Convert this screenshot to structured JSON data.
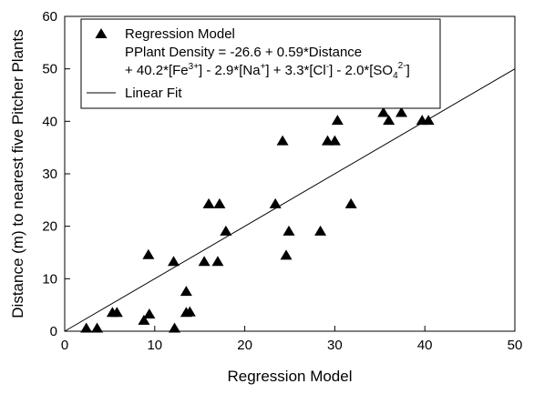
{
  "chart_data": {
    "type": "scatter",
    "xlabel": "Regression Model",
    "ylabel": "Distance (m) to nearest five Pitcher Plants",
    "xlim": [
      0,
      50
    ],
    "ylim": [
      0,
      60
    ],
    "x_ticks": [
      "0",
      "10",
      "20",
      "30",
      "40",
      "50"
    ],
    "y_ticks": [
      "0",
      "10",
      "20",
      "30",
      "40",
      "50",
      "60"
    ],
    "grid": false,
    "legend_position": "top-left",
    "series": [
      {
        "name": "Regression Model",
        "marker": "triangle",
        "points": [
          {
            "x": 2.4,
            "y": 0.5
          },
          {
            "x": 3.6,
            "y": 0.5
          },
          {
            "x": 5.3,
            "y": 3.5
          },
          {
            "x": 5.8,
            "y": 3.5
          },
          {
            "x": 8.8,
            "y": 2.0
          },
          {
            "x": 9.3,
            "y": 14.5
          },
          {
            "x": 9.4,
            "y": 3.2
          },
          {
            "x": 12.1,
            "y": 13.2
          },
          {
            "x": 12.2,
            "y": 0.5
          },
          {
            "x": 13.5,
            "y": 7.5
          },
          {
            "x": 13.5,
            "y": 3.5
          },
          {
            "x": 13.9,
            "y": 3.6
          },
          {
            "x": 15.5,
            "y": 13.2
          },
          {
            "x": 16.0,
            "y": 24.2
          },
          {
            "x": 17.0,
            "y": 13.2
          },
          {
            "x": 17.2,
            "y": 24.2
          },
          {
            "x": 17.9,
            "y": 19.0
          },
          {
            "x": 23.4,
            "y": 24.2
          },
          {
            "x": 24.2,
            "y": 36.2
          },
          {
            "x": 24.6,
            "y": 14.4
          },
          {
            "x": 24.9,
            "y": 19.0
          },
          {
            "x": 28.4,
            "y": 19.0
          },
          {
            "x": 29.2,
            "y": 36.2
          },
          {
            "x": 30.0,
            "y": 36.2
          },
          {
            "x": 30.3,
            "y": 40.1
          },
          {
            "x": 31.8,
            "y": 24.2
          },
          {
            "x": 35.4,
            "y": 41.6
          },
          {
            "x": 36.0,
            "y": 40.1
          },
          {
            "x": 37.4,
            "y": 41.6
          },
          {
            "x": 39.7,
            "y": 40.1
          },
          {
            "x": 40.4,
            "y": 40.1
          }
        ]
      },
      {
        "name": "Linear Fit",
        "type": "line",
        "color": "#000000",
        "x": [
          0,
          50
        ],
        "y": [
          0,
          50
        ]
      }
    ],
    "legend": {
      "marker_label": "Regression Model",
      "equation_line1": "PPlant Density = -26.6 + 0.59*Distance",
      "eq2": {
        "a": "+ 40.2*[Fe",
        "a_sup": "3+",
        "b": "] - 2.9*[Na",
        "b_sup": "+",
        "c": "] + 3.3*[Cl",
        "c_sup": "-",
        "d": "] - 2.0*[SO",
        "d_sub": "4",
        "d_sup": "2-",
        "e": "]"
      },
      "line_label": "Linear Fit"
    }
  }
}
